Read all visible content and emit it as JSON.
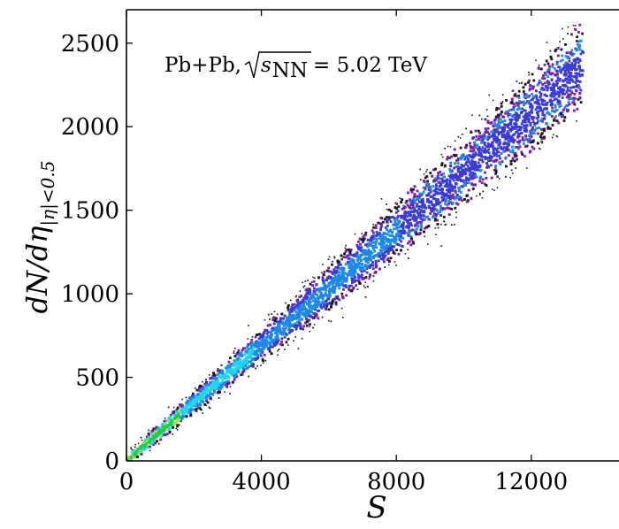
{
  "chart_data": {
    "type": "heatmap",
    "subtype": "2d-histogram-scatter",
    "annotation": {
      "prefix": "Pb+Pb, ",
      "sqrt_var": "s",
      "sqrt_sub": "NN",
      "suffix": " = 5.02 TeV"
    },
    "xlabel": "S",
    "ylabel": {
      "main": "dN/dη",
      "subscript": "|η|<0.5"
    },
    "xlim": [
      0,
      14600
    ],
    "ylim": [
      0,
      2700
    ],
    "xticks": [
      0,
      4000,
      8000,
      12000
    ],
    "yticks": [
      0,
      500,
      1000,
      1500,
      2000,
      2500
    ],
    "grid": false,
    "colormap": [
      "#22c55e",
      "#a3e635",
      "#22d3ee",
      "#1e88e5",
      "#3b3bd1",
      "#7a1fa2",
      "#1a1a1a"
    ],
    "density_trend": "highest density at low S, decreasing toward high S",
    "band": [
      {
        "x": 0,
        "y": 0
      },
      {
        "x": 2000,
        "y": 350
      },
      {
        "x": 4000,
        "y": 690
      },
      {
        "x": 6000,
        "y": 1030
      },
      {
        "x": 8000,
        "y": 1380
      },
      {
        "x": 10000,
        "y": 1730
      },
      {
        "x": 12000,
        "y": 2080
      },
      {
        "x": 13500,
        "y": 2370
      }
    ]
  }
}
